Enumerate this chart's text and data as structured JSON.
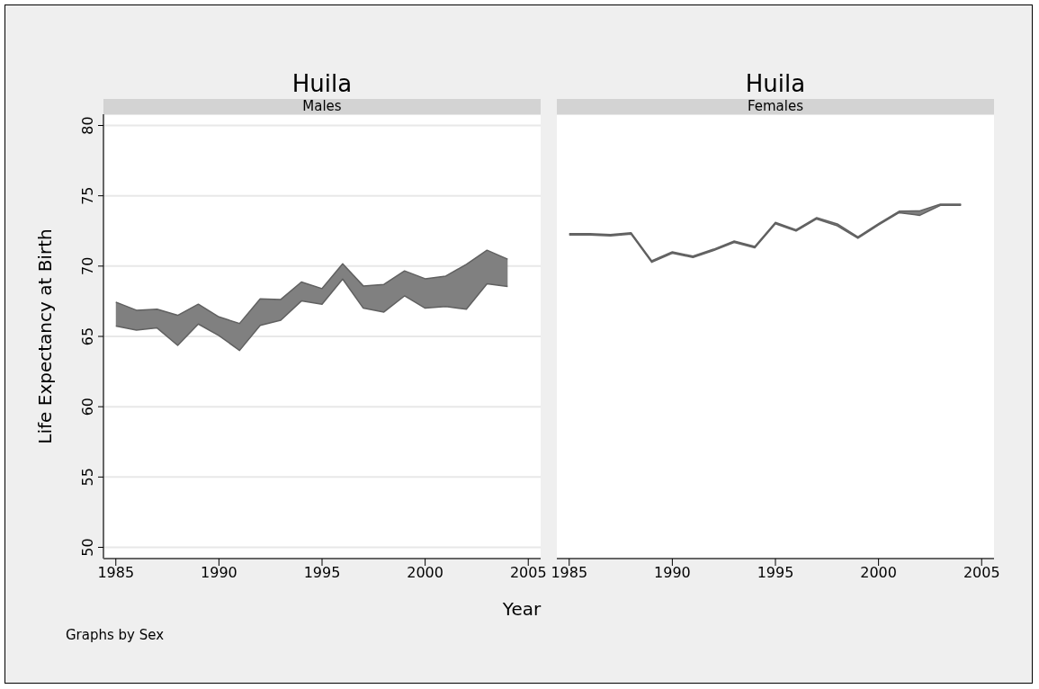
{
  "chart_data": [
    {
      "type": "area",
      "title": "Huila",
      "subtitle": "Males",
      "xlabel": "Year",
      "ylabel": "Life Expectancy at Birth",
      "annotations": [
        "Graphs by Sex"
      ],
      "x": [
        1985,
        1986,
        1987,
        1988,
        1989,
        1990,
        1991,
        1992,
        1993,
        1994,
        1995,
        1996,
        1997,
        1998,
        1999,
        2000,
        2001,
        2002,
        2003,
        2004
      ],
      "series": [
        {
          "type": "line",
          "color": "#606060",
          "values": [
            65.73,
            65.45,
            65.6,
            64.36,
            65.88,
            65.06,
            64.0,
            65.79,
            66.15,
            67.52,
            67.29,
            69.08,
            67.01,
            66.73,
            67.88,
            67.01,
            67.12,
            66.94,
            68.74,
            68.55
          ]
        },
        {
          "color": "#808080",
          "values": [
            67.44,
            66.86,
            66.94,
            66.5,
            67.29,
            66.39,
            65.92,
            67.67,
            67.63,
            68.87,
            68.4,
            70.17,
            68.59,
            68.7,
            69.66,
            69.1,
            69.29,
            70.13,
            71.13,
            70.49
          ]
        }
      ],
      "xlim": [
        1984.4,
        2005.6
      ],
      "xticks": [
        1985,
        1990,
        1995,
        2000,
        2005
      ],
      "ylim": [
        49.2,
        80.8
      ],
      "yticks": [
        50,
        55,
        60,
        65,
        70,
        75,
        80
      ],
      "grid": "y"
    },
    {
      "type": "area",
      "title": "Huila",
      "subtitle": "Females",
      "x": [
        1985,
        1986,
        1987,
        1988,
        1989,
        1990,
        1991,
        1992,
        1993,
        1994,
        1995,
        1996,
        1997,
        1998,
        1999,
        2000,
        2001,
        2002,
        2003,
        2004
      ],
      "series": [
        {
          "type": "line",
          "color": "#606060",
          "values": [
            72.21,
            72.21,
            72.15,
            72.28,
            70.27,
            70.91,
            70.61,
            71.1,
            71.68,
            71.3,
            73.01,
            72.49,
            73.35,
            72.86,
            71.98,
            72.92,
            73.8,
            73.61,
            74.32,
            74.32
          ]
        },
        {
          "color": "#808080",
          "values": [
            72.31,
            72.31,
            72.25,
            72.38,
            70.37,
            71.01,
            70.71,
            71.2,
            71.78,
            71.4,
            73.11,
            72.59,
            73.45,
            73.0,
            72.08,
            73.02,
            73.9,
            73.93,
            74.4,
            74.4
          ]
        }
      ],
      "xlim": [
        1984.4,
        2005.6
      ],
      "xticks": [
        1985,
        1990,
        1995,
        2000,
        2005
      ],
      "ylim": [
        49.2,
        80.8
      ],
      "yticks": [
        50,
        55,
        60,
        65,
        70,
        75,
        80
      ],
      "grid": "y",
      "tick_labels": "x"
    }
  ]
}
